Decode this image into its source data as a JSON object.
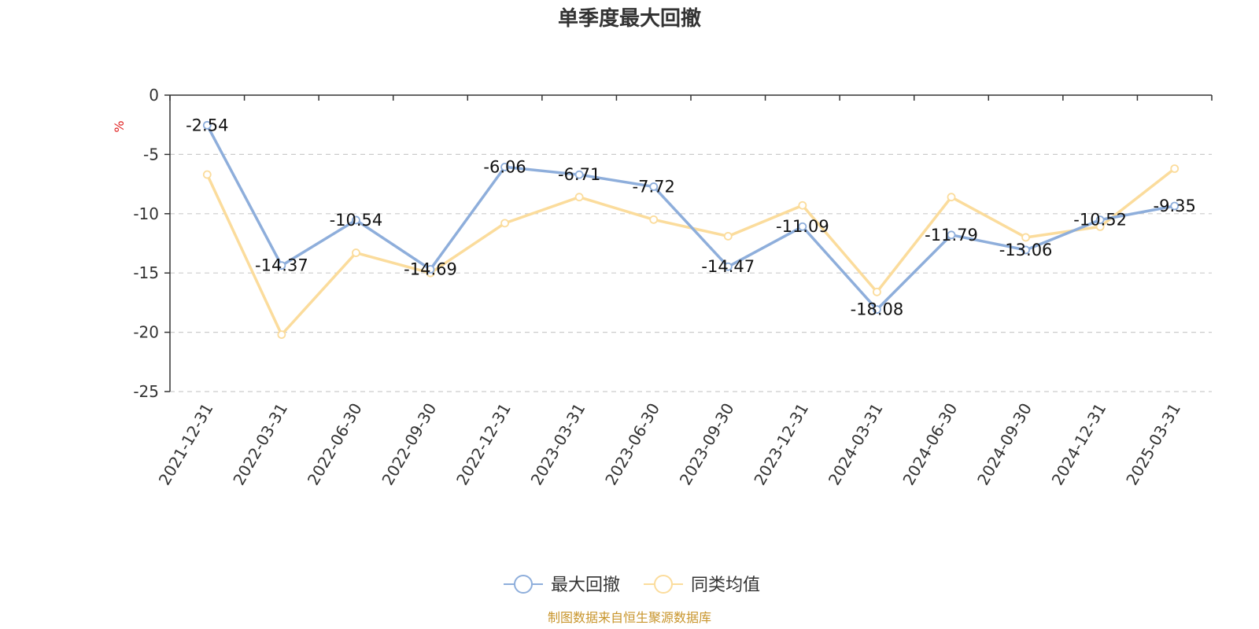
{
  "chart_data": {
    "type": "line",
    "title": "单季度最大回撤",
    "ylabel": "%",
    "x": [
      "2021-12-31",
      "2022-03-31",
      "2022-06-30",
      "2022-09-30",
      "2022-12-31",
      "2023-03-31",
      "2023-06-30",
      "2023-09-30",
      "2023-12-31",
      "2024-03-31",
      "2024-06-30",
      "2024-09-30",
      "2024-12-31",
      "2025-03-31"
    ],
    "ylim": [
      -25,
      0
    ],
    "yticks": [
      0,
      -5,
      -10,
      -15,
      -20,
      -25
    ],
    "grid": true,
    "legend_position": "bottom",
    "series": [
      {
        "name": "最大回撤",
        "color": "#8eaedb",
        "values": [
          -2.54,
          -14.37,
          -10.54,
          -14.69,
          -6.06,
          -6.71,
          -7.72,
          -14.47,
          -11.09,
          -18.08,
          -11.79,
          -13.06,
          -10.52,
          -9.35
        ],
        "show_labels": true
      },
      {
        "name": "同类均值",
        "color": "#fbdc9c",
        "values": [
          -6.7,
          -20.2,
          -13.3,
          -15.0,
          -10.8,
          -8.6,
          -10.5,
          -11.9,
          -9.3,
          -16.6,
          -8.6,
          -12.0,
          -11.1,
          -6.2
        ],
        "show_labels": false
      }
    ],
    "source": "制图数据来自恒生聚源数据库"
  },
  "colors": {
    "unit": "#e02020",
    "source": "#c8952c",
    "axis": "#333333",
    "grid": "#cccccc"
  }
}
